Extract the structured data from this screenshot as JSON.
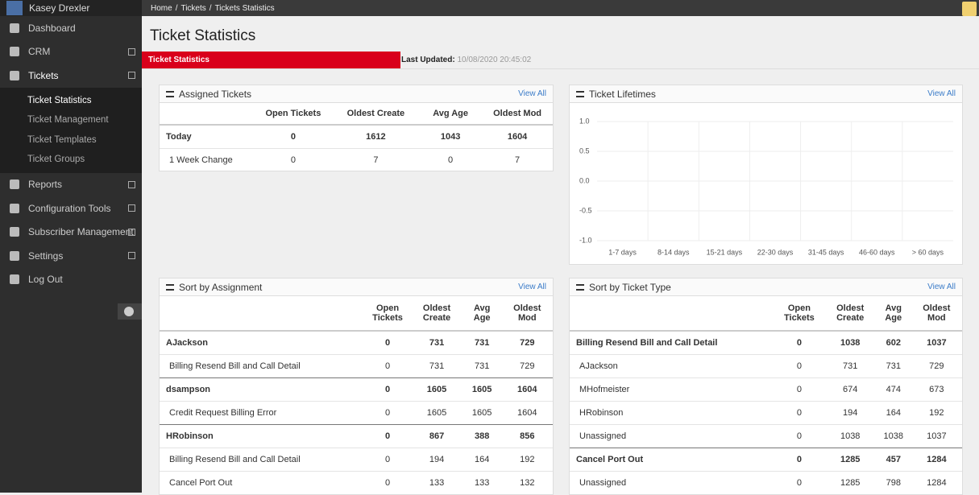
{
  "user": {
    "name": "Kasey Drexler"
  },
  "sidebar": {
    "items": [
      {
        "label": "Dashboard"
      },
      {
        "label": "CRM"
      },
      {
        "label": "Tickets"
      }
    ],
    "subitems": [
      {
        "label": "Ticket Statistics"
      },
      {
        "label": "Ticket Management"
      },
      {
        "label": "Ticket Templates"
      },
      {
        "label": "Ticket Groups"
      }
    ],
    "items_after": [
      {
        "label": "Reports"
      },
      {
        "label": "Configuration Tools"
      },
      {
        "label": "Subscriber Management"
      },
      {
        "label": "Settings"
      },
      {
        "label": "Log Out"
      }
    ]
  },
  "breadcrumb": [
    "Home",
    "Tickets",
    "Tickets Statistics"
  ],
  "page_title": "Ticket Statistics",
  "tab": "Ticket Statistics",
  "last_updated": {
    "label": "Last Updated:",
    "value": "10/08/2020 20:45:02"
  },
  "assigned_tickets": {
    "title": "Assigned Tickets",
    "view_all": "View All",
    "columns": [
      "Open Tickets",
      "Oldest Create",
      "Avg Age",
      "Oldest Mod"
    ],
    "rows": [
      {
        "label": "Today",
        "bold": true,
        "values": [
          0,
          1612,
          1043,
          1604
        ]
      },
      {
        "label": "1 Week Change",
        "bold": false,
        "values": [
          0,
          7,
          0,
          7
        ]
      }
    ]
  },
  "ticket_lifetimes": {
    "title": "Ticket Lifetimes",
    "view_all": "View All",
    "chart_data": {
      "type": "bar",
      "categories": [
        "1-7 days",
        "8-14 days",
        "15-21 days",
        "22-30 days",
        "31-45 days",
        "46-60 days",
        "> 60 days"
      ],
      "values": [
        0,
        0,
        0,
        0,
        0,
        0,
        0
      ],
      "color": "#a9c4e0",
      "ylim": [
        -1,
        1
      ],
      "yticks": [
        {
          "value": 1,
          "label": "1.0"
        },
        0.5,
        {
          "value": 0,
          "label": "0.0"
        },
        -0.5,
        {
          "value": -1,
          "label": "-1.0"
        }
      ],
      "grid": true
    }
  },
  "sort_by_assignment": {
    "title": "Sort by Assignment",
    "view_all": "View All",
    "columns": [
      "Open Tickets",
      "Oldest Create",
      "Avg Age",
      "Oldest Mod"
    ],
    "rows": [
      {
        "label": "AJackson",
        "bold": true,
        "values": [
          0,
          731,
          731,
          729
        ]
      },
      {
        "label": "Billing Resend Bill and Call Detail",
        "bold": false,
        "values": [
          0,
          731,
          731,
          729
        ]
      },
      {
        "label": "dsampson",
        "bold": true,
        "values": [
          0,
          1605,
          1605,
          1604
        ]
      },
      {
        "label": "Credit Request Billing Error",
        "bold": false,
        "values": [
          0,
          1605,
          1605,
          1604
        ]
      },
      {
        "label": "HRobinson",
        "bold": true,
        "values": [
          0,
          867,
          388,
          856
        ]
      },
      {
        "label": "Billing Resend Bill and Call Detail",
        "bold": false,
        "values": [
          0,
          194,
          164,
          192
        ]
      },
      {
        "label": "Cancel Port Out",
        "bold": false,
        "values": [
          0,
          133,
          133,
          132
        ]
      }
    ]
  },
  "sort_by_ticket_type": {
    "title": "Sort by Ticket Type",
    "view_all": "View All",
    "columns": [
      "Open Tickets",
      "Oldest Create",
      "Avg Age",
      "Oldest Mod"
    ],
    "rows": [
      {
        "label": "Billing Resend Bill and Call Detail",
        "bold": true,
        "values": [
          0,
          1038,
          602,
          1037
        ]
      },
      {
        "label": "AJackson",
        "bold": false,
        "values": [
          0,
          731,
          731,
          729
        ]
      },
      {
        "label": "MHofmeister",
        "bold": false,
        "values": [
          0,
          674,
          474,
          673
        ]
      },
      {
        "label": "HRobinson",
        "bold": false,
        "values": [
          0,
          194,
          164,
          192
        ]
      },
      {
        "label": "Unassigned",
        "bold": false,
        "values": [
          0,
          1038,
          1038,
          1037
        ]
      },
      {
        "label": "Cancel Port Out",
        "bold": true,
        "values": [
          0,
          1285,
          457,
          1284
        ]
      },
      {
        "label": "Unassigned",
        "bold": false,
        "values": [
          0,
          1285,
          798,
          1284
        ]
      }
    ]
  }
}
